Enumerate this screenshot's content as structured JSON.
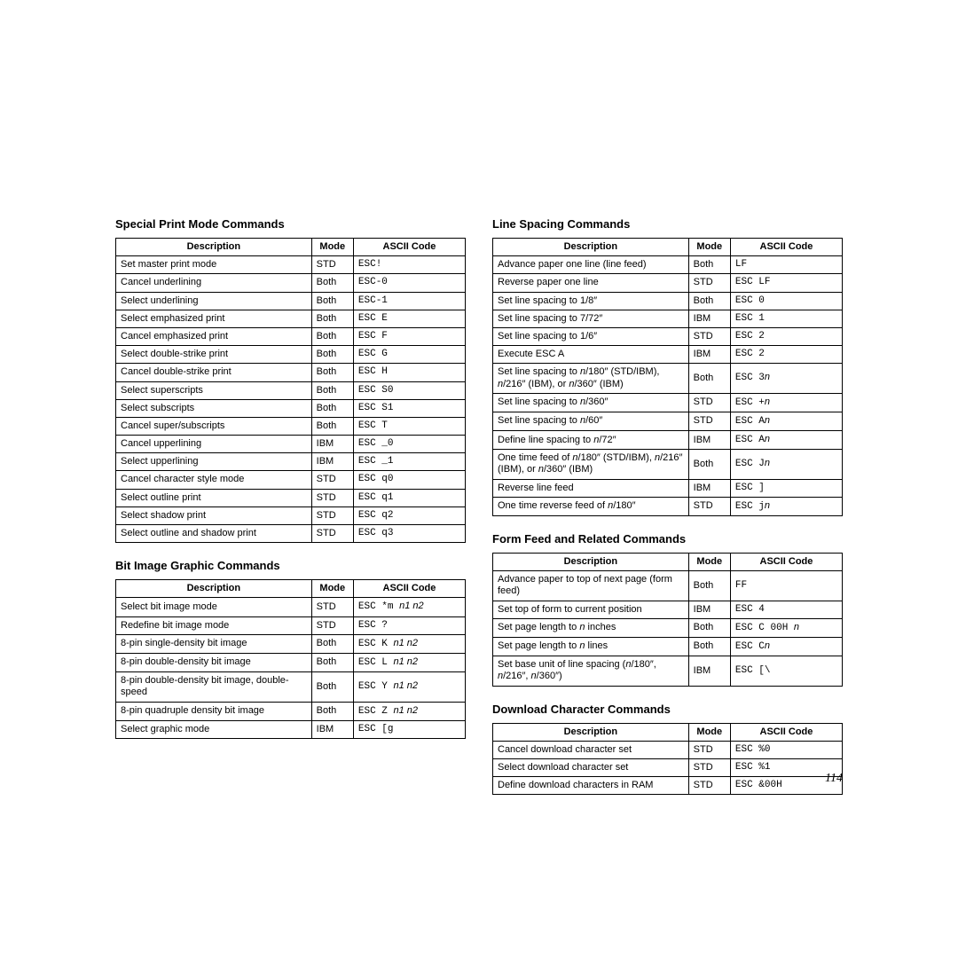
{
  "page_number": "114",
  "headers": {
    "desc": "Description",
    "mode": "Mode",
    "code": "ASCII Code"
  },
  "style": {
    "font_body": "Arial",
    "font_mono": "Courier New",
    "font_pagenum": "Times New Roman",
    "title_fontsize_pt": 10,
    "body_fontsize_pt": 8,
    "border_color": "#000000",
    "background_color": "#ffffff",
    "text_color": "#000000",
    "col_widths_pct": [
      56,
      12,
      32
    ]
  },
  "left": {
    "sections": [
      {
        "title": "Special Print Mode Commands",
        "tbody_id": "tb-special",
        "rows": [
          {
            "desc": "Set master print mode",
            "mode": "STD",
            "code": "ESC!"
          },
          {
            "desc": "Cancel underlining",
            "mode": "Both",
            "code": "ESC-0"
          },
          {
            "desc": "Select underlining",
            "mode": "Both",
            "code": "ESC-1"
          },
          {
            "desc": "Select emphasized print",
            "mode": "Both",
            "code": "ESC E"
          },
          {
            "desc": "Cancel emphasized print",
            "mode": "Both",
            "code": "ESC F"
          },
          {
            "desc": "Select double-strike print",
            "mode": "Both",
            "code": "ESC G"
          },
          {
            "desc": "Cancel double-strike print",
            "mode": "Both",
            "code": "ESC H"
          },
          {
            "desc": "Select superscripts",
            "mode": "Both",
            "code": "ESC S0"
          },
          {
            "desc": "Select subscripts",
            "mode": "Both",
            "code": "ESC S1"
          },
          {
            "desc": "Cancel super/subscripts",
            "mode": "Both",
            "code": "ESC T"
          },
          {
            "desc": "Cancel upperlining",
            "mode": "IBM",
            "code": "ESC _0"
          },
          {
            "desc": "Select upperlining",
            "mode": "IBM",
            "code": "ESC _1"
          },
          {
            "desc": "Cancel character style mode",
            "mode": "STD",
            "code": "ESC q0"
          },
          {
            "desc": "Select outline print",
            "mode": "STD",
            "code": "ESC q1"
          },
          {
            "desc": "Select shadow print",
            "mode": "STD",
            "code": "ESC q2"
          },
          {
            "desc": "Select outline and shadow print",
            "mode": "STD",
            "code": "ESC q3"
          }
        ]
      },
      {
        "title": "Bit Image Graphic Commands",
        "tbody_id": "tb-bitimage",
        "rows": [
          {
            "desc": "Select bit image mode",
            "mode": "STD",
            "code_parts": [
              {
                "t": "ESC *m "
              },
              {
                "t": "n1 n2",
                "it": true
              }
            ]
          },
          {
            "desc": "Redefine bit image mode",
            "mode": "STD",
            "code": "ESC ?"
          },
          {
            "desc": "8-pin single-density bit image",
            "mode": "Both",
            "code_parts": [
              {
                "t": "ESC K "
              },
              {
                "t": "n1 n2",
                "it": true
              }
            ]
          },
          {
            "desc": "8-pin double-density bit image",
            "mode": "Both",
            "code_parts": [
              {
                "t": "ESC L "
              },
              {
                "t": "n1 n2",
                "it": true
              }
            ]
          },
          {
            "desc": "8-pin double-density bit image, double-speed",
            "mode": "Both",
            "code_parts": [
              {
                "t": "ESC Y "
              },
              {
                "t": "n1 n2",
                "it": true
              }
            ]
          },
          {
            "desc": "8-pin quadruple density bit image",
            "mode": "Both",
            "code_parts": [
              {
                "t": "ESC Z "
              },
              {
                "t": "n1 n2",
                "it": true
              }
            ]
          },
          {
            "desc": "Select graphic mode",
            "mode": "IBM",
            "code": "ESC [g"
          }
        ]
      }
    ]
  },
  "right": {
    "sections": [
      {
        "title": "Line Spacing Commands",
        "tbody_id": "tb-linespacing",
        "rows": [
          {
            "desc": "Advance paper one line (line feed)",
            "mode": "Both",
            "code": "LF"
          },
          {
            "desc": "Reverse paper one line",
            "mode": "STD",
            "code": "ESC LF"
          },
          {
            "desc": "Set line spacing to 1/8″",
            "mode": "Both",
            "code": "ESC 0"
          },
          {
            "desc": "Set line spacing to 7/72″",
            "mode": "IBM",
            "code": "ESC 1"
          },
          {
            "desc": "Set line spacing to 1/6″",
            "mode": "STD",
            "code": "ESC 2"
          },
          {
            "desc": "Execute ESC A",
            "mode": "IBM",
            "code": "ESC 2"
          },
          {
            "desc_parts": [
              {
                "t": "Set line spacing to "
              },
              {
                "t": "n",
                "it": true
              },
              {
                "t": "/180″ (STD/IBM), "
              },
              {
                "t": "n",
                "it": true
              },
              {
                "t": "/216″ (IBM), or "
              },
              {
                "t": "n",
                "it": true
              },
              {
                "t": "/360″ (IBM)"
              }
            ],
            "mode": "Both",
            "code_parts": [
              {
                "t": "ESC 3"
              },
              {
                "t": "n",
                "it": true
              }
            ]
          },
          {
            "desc_parts": [
              {
                "t": "Set line spacing to "
              },
              {
                "t": "n",
                "it": true
              },
              {
                "t": "/360″"
              }
            ],
            "mode": "STD",
            "code_parts": [
              {
                "t": "ESC +"
              },
              {
                "t": "n",
                "it": true
              }
            ]
          },
          {
            "desc_parts": [
              {
                "t": "Set line spacing to "
              },
              {
                "t": "n",
                "it": true
              },
              {
                "t": "/60″"
              }
            ],
            "mode": "STD",
            "code_parts": [
              {
                "t": "ESC A"
              },
              {
                "t": "n",
                "it": true
              }
            ]
          },
          {
            "desc_parts": [
              {
                "t": "Define line spacing to "
              },
              {
                "t": "n",
                "it": true
              },
              {
                "t": "/72″"
              }
            ],
            "mode": "IBM",
            "code_parts": [
              {
                "t": "ESC A"
              },
              {
                "t": "n",
                "it": true
              }
            ]
          },
          {
            "desc_parts": [
              {
                "t": "One time feed of "
              },
              {
                "t": "n",
                "it": true
              },
              {
                "t": "/180″ (STD/IBM), "
              },
              {
                "t": "n",
                "it": true
              },
              {
                "t": "/216″ (IBM), or "
              },
              {
                "t": "n",
                "it": true
              },
              {
                "t": "/360″ (IBM)"
              }
            ],
            "mode": "Both",
            "code_parts": [
              {
                "t": "ESC J"
              },
              {
                "t": "n",
                "it": true
              }
            ]
          },
          {
            "desc": "Reverse line feed",
            "mode": "IBM",
            "code": "ESC ]"
          },
          {
            "desc_parts": [
              {
                "t": "One time reverse feed of "
              },
              {
                "t": "n",
                "it": true
              },
              {
                "t": "/180″"
              }
            ],
            "mode": "STD",
            "code_parts": [
              {
                "t": "ESC j"
              },
              {
                "t": "n",
                "it": true
              }
            ]
          }
        ]
      },
      {
        "title": "Form Feed and Related Commands",
        "tbody_id": "tb-formfeed",
        "rows": [
          {
            "desc": "Advance paper to top of next page (form feed)",
            "mode": "Both",
            "code": "FF"
          },
          {
            "desc": "Set top of form to current position",
            "mode": "IBM",
            "code": "ESC 4"
          },
          {
            "desc_parts": [
              {
                "t": "Set page length to "
              },
              {
                "t": "n",
                "it": true
              },
              {
                "t": " inches"
              }
            ],
            "mode": "Both",
            "code_parts": [
              {
                "t": "ESC C 00H "
              },
              {
                "t": "n",
                "it": true
              }
            ]
          },
          {
            "desc_parts": [
              {
                "t": "Set page length to "
              },
              {
                "t": "n",
                "it": true
              },
              {
                "t": " lines"
              }
            ],
            "mode": "Both",
            "code_parts": [
              {
                "t": "ESC C"
              },
              {
                "t": "n",
                "it": true
              }
            ]
          },
          {
            "desc_parts": [
              {
                "t": "Set base unit of line spacing ("
              },
              {
                "t": "n",
                "it": true
              },
              {
                "t": "/180″, "
              },
              {
                "t": "n",
                "it": true
              },
              {
                "t": "/216″, "
              },
              {
                "t": "n",
                "it": true
              },
              {
                "t": "/360″)"
              }
            ],
            "mode": "IBM",
            "code": "ESC [\\"
          }
        ]
      },
      {
        "title": "Download Character Commands",
        "tbody_id": "tb-download",
        "rows": [
          {
            "desc": "Cancel download character set",
            "mode": "STD",
            "code": "ESC %0"
          },
          {
            "desc": "Select download character set",
            "mode": "STD",
            "code": "ESC %1"
          },
          {
            "desc": "Define download characters in RAM",
            "mode": "STD",
            "code": "ESC &00H"
          }
        ]
      }
    ]
  }
}
